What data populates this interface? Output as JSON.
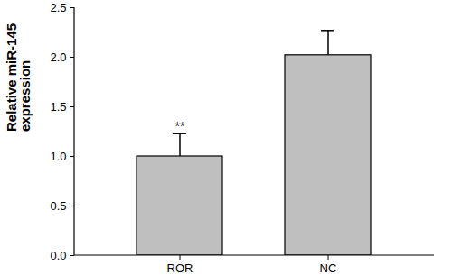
{
  "chart_data": {
    "type": "bar",
    "categories": [
      "ROR",
      "NC"
    ],
    "values": [
      1.0,
      2.02
    ],
    "errors": [
      0.23,
      0.25
    ],
    "color": "#bfbfbf",
    "ylabel": "Relative miR-145 expression",
    "ylim": [
      0,
      2.5
    ],
    "yticks": [
      {
        "value": 0,
        "label": "0.0"
      },
      {
        "value": 0.5,
        "label": "0.5"
      },
      {
        "value": 1.0,
        "label": "1.0"
      },
      {
        "value": 1.5,
        "label": "1.5"
      },
      {
        "value": 2.0,
        "label": "2.0"
      },
      {
        "value": 2.5,
        "label": "2.5"
      }
    ],
    "annotations": [
      {
        "text": "**",
        "category": "ROR"
      }
    ]
  }
}
